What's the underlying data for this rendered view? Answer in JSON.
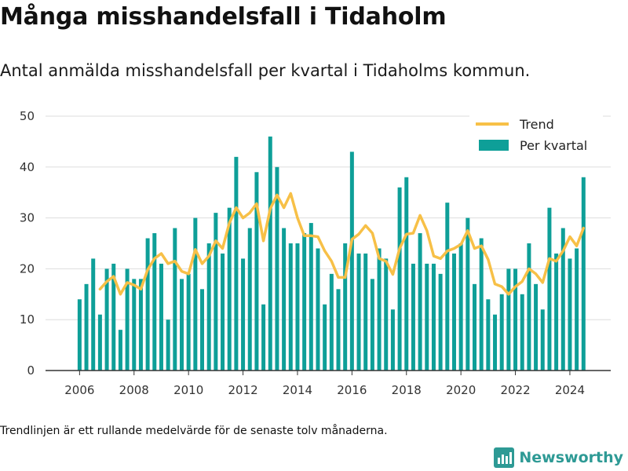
{
  "title": "Många misshandelsfall i Tidaholm",
  "subtitle": "Antal anmälda misshandelsfall per kvartal i Tidaholms kommun.",
  "footnote": "Trendlinjen är ett rullande medelvärde för de senaste tolv månaderna.",
  "brand": "Newsworthy",
  "colors": {
    "bar": "#0e9f98",
    "trend": "#f7c047",
    "axis": "#333333",
    "grid": "#dddddd"
  },
  "chart_data": {
    "type": "bar",
    "x_start": 2006,
    "x_step": 0.25,
    "xlim": [
      2004.75,
      2025.5
    ],
    "ylim": [
      0,
      50
    ],
    "yticks": [
      0,
      10,
      20,
      30,
      40,
      50
    ],
    "xticks": [
      2006,
      2008,
      2010,
      2012,
      2014,
      2016,
      2018,
      2020,
      2022,
      2024
    ],
    "grid": true,
    "legend_position": "top-right",
    "series": [
      {
        "name": "Per kvartal",
        "type": "bar",
        "values": [
          14,
          17,
          22,
          11,
          20,
          21,
          8,
          20,
          18,
          18,
          26,
          27,
          21,
          10,
          28,
          18,
          19,
          30,
          16,
          25,
          31,
          23,
          32,
          42,
          22,
          28,
          39,
          13,
          46,
          40,
          28,
          25,
          25,
          27,
          29,
          24,
          13,
          19,
          16,
          25,
          43,
          23,
          23,
          18,
          24,
          22,
          12,
          36,
          38,
          21,
          27,
          21,
          21,
          19,
          33,
          23,
          25,
          30,
          17,
          26,
          14,
          11,
          15,
          20,
          20,
          15,
          25,
          17,
          12,
          32,
          23,
          28,
          22,
          24,
          38
        ]
      },
      {
        "name": "Trend",
        "type": "line",
        "values": [
          null,
          null,
          null,
          16,
          17.5,
          18.5,
          15,
          17.3,
          16.8,
          16,
          19.8,
          22,
          23,
          21,
          21.5,
          19.5,
          19,
          23.8,
          21,
          22.5,
          25.5,
          24,
          29,
          32,
          30,
          31,
          32.8,
          25.5,
          31.8,
          34.5,
          32,
          34.8,
          30,
          26.5,
          26.5,
          26.3,
          23.5,
          21.5,
          18.3,
          18.3,
          25.8,
          26.8,
          28.5,
          27,
          22,
          21.5,
          18.9,
          24,
          26.8,
          27,
          30.5,
          27.5,
          22.5,
          22,
          23.5,
          24,
          24.8,
          27.5,
          24,
          24.5,
          21.8,
          17,
          16.5,
          15,
          16.5,
          17.5,
          20,
          19,
          17.3,
          22,
          21.5,
          23.5,
          26.3,
          24.5,
          28
        ]
      }
    ]
  }
}
